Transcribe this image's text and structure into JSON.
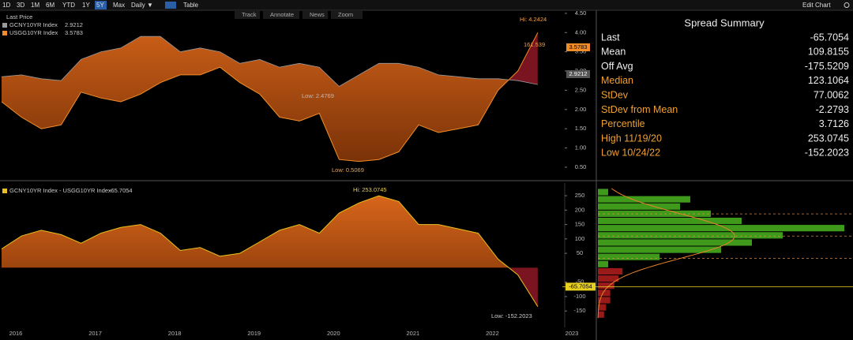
{
  "toolbar": {
    "buttons": [
      "1D",
      "3D",
      "1M",
      "6M",
      "YTD",
      "1Y",
      "5Y",
      "Max",
      "Daily ▼",
      "Table"
    ],
    "selected": 6,
    "edit": "Edit Chart"
  },
  "tools": [
    "Track",
    "Annotate",
    "News",
    "Zoom"
  ],
  "chart_data": [
    {
      "type": "line",
      "legend_title": "Last Price",
      "series": [
        {
          "name": "GCNY10YR Index",
          "last_label": "2.9212",
          "color": "#9a9a9a",
          "values": [
            2.85,
            2.9,
            2.8,
            2.75,
            3.3,
            3.5,
            3.6,
            3.9,
            3.9,
            3.5,
            3.6,
            3.5,
            3.2,
            3.3,
            3.1,
            3.2,
            3.1,
            2.6,
            2.9,
            3.2,
            3.2,
            3.1,
            2.9,
            2.85,
            2.8,
            2.8,
            2.75,
            2.65,
            null
          ]
        },
        {
          "name": "USGG10YR Index",
          "last_label": "3.5783",
          "color": "#f28c28",
          "values": [
            2.2,
            1.8,
            1.5,
            1.6,
            2.45,
            2.3,
            2.2,
            2.4,
            2.7,
            2.9,
            2.9,
            3.1,
            2.7,
            2.4,
            1.8,
            1.7,
            1.9,
            0.7,
            0.65,
            0.7,
            0.9,
            1.6,
            1.4,
            1.5,
            1.6,
            2.5,
            3.0,
            4.0,
            null
          ]
        }
      ],
      "fill_color": "#c45a10",
      "negative_fill_color": "#7a1420",
      "ylim": [
        0.17,
        4.58
      ],
      "yticks": [
        {
          "value": 0.5,
          "label": "0.50"
        },
        {
          "value": 1,
          "label": "1.00"
        },
        {
          "value": 1.5,
          "label": "1.50"
        },
        {
          "value": 2,
          "label": "2.00"
        },
        {
          "value": 2.5,
          "label": "2.50"
        },
        {
          "value": 3,
          "label": "3.00"
        },
        {
          "value": 3.5,
          "label": "3.50"
        },
        {
          "value": 4,
          "label": "4.00"
        },
        {
          "value": 4.5,
          "label": "4.50"
        }
      ],
      "annotations": [
        "Hi: 4.2424",
        "Low: 2.4769",
        "Low: 0.5069",
        "161.539"
      ]
    },
    {
      "type": "area",
      "categories": [
        "2016",
        null,
        null,
        null,
        "2017",
        null,
        null,
        null,
        "2018",
        null,
        null,
        null,
        "2019",
        null,
        null,
        null,
        "2020",
        null,
        null,
        null,
        "2021",
        null,
        null,
        null,
        "2022",
        null,
        null,
        null,
        "2023"
      ],
      "series": [
        {
          "name": "GCNY10YR Index - USGG10YR Index",
          "color": "#e8c020",
          "values": [
            65,
            110,
            130,
            115,
            85,
            120,
            140,
            150,
            120,
            60,
            70,
            40,
            50,
            90,
            130,
            150,
            120,
            190,
            225,
            250,
            230,
            150,
            150,
            135,
            120,
            30,
            -25,
            -135,
            null
          ]
        }
      ],
      "fill_color": "#c45a10",
      "negative_fill_color": "#7a1420",
      "ylim": [
        -207,
        294
      ],
      "yticks": [
        -150,
        -100,
        -50,
        50,
        100,
        150,
        200,
        250
      ],
      "annotations": [
        "Hi: 253.0745",
        "Low: -152.2023"
      ]
    },
    {
      "type": "histogram",
      "orientation": "horizontal",
      "bins": [
        -175,
        -150,
        -125,
        -100,
        -75,
        -50,
        -25,
        0,
        25,
        50,
        75,
        100,
        125,
        150,
        175,
        200,
        225,
        250,
        275
      ],
      "counts": [
        3,
        4,
        6,
        6,
        8,
        10,
        12,
        5,
        30,
        60,
        75,
        90,
        120,
        70,
        55,
        40,
        45,
        5
      ],
      "color": "#3f9a1c",
      "negative_color": "#9a1a1a",
      "curve_color": "#e8822a",
      "last_color": "#e8d020"
    }
  ],
  "summary": {
    "title": "Spread Summary",
    "rows": [
      {
        "label": "Last",
        "value": -65.7054,
        "emphasis": false
      },
      {
        "label": "Mean",
        "value": 109.8155,
        "emphasis": false
      },
      {
        "label": "Off Avg",
        "value": -175.5209,
        "emphasis": false
      },
      {
        "label": "Median",
        "value": 123.1064,
        "emphasis": true
      },
      {
        "label": "StDev",
        "value": 77.0062,
        "emphasis": true
      },
      {
        "label": "StDev from Mean",
        "value": -2.2793,
        "emphasis": true
      },
      {
        "label": "Percentile",
        "value": 3.7126,
        "emphasis": true
      },
      {
        "label": "High 11/19/20",
        "value": 253.0745,
        "emphasis": true
      },
      {
        "label": "Low 10/24/22",
        "value": -152.2023,
        "emphasis": true
      }
    ]
  }
}
